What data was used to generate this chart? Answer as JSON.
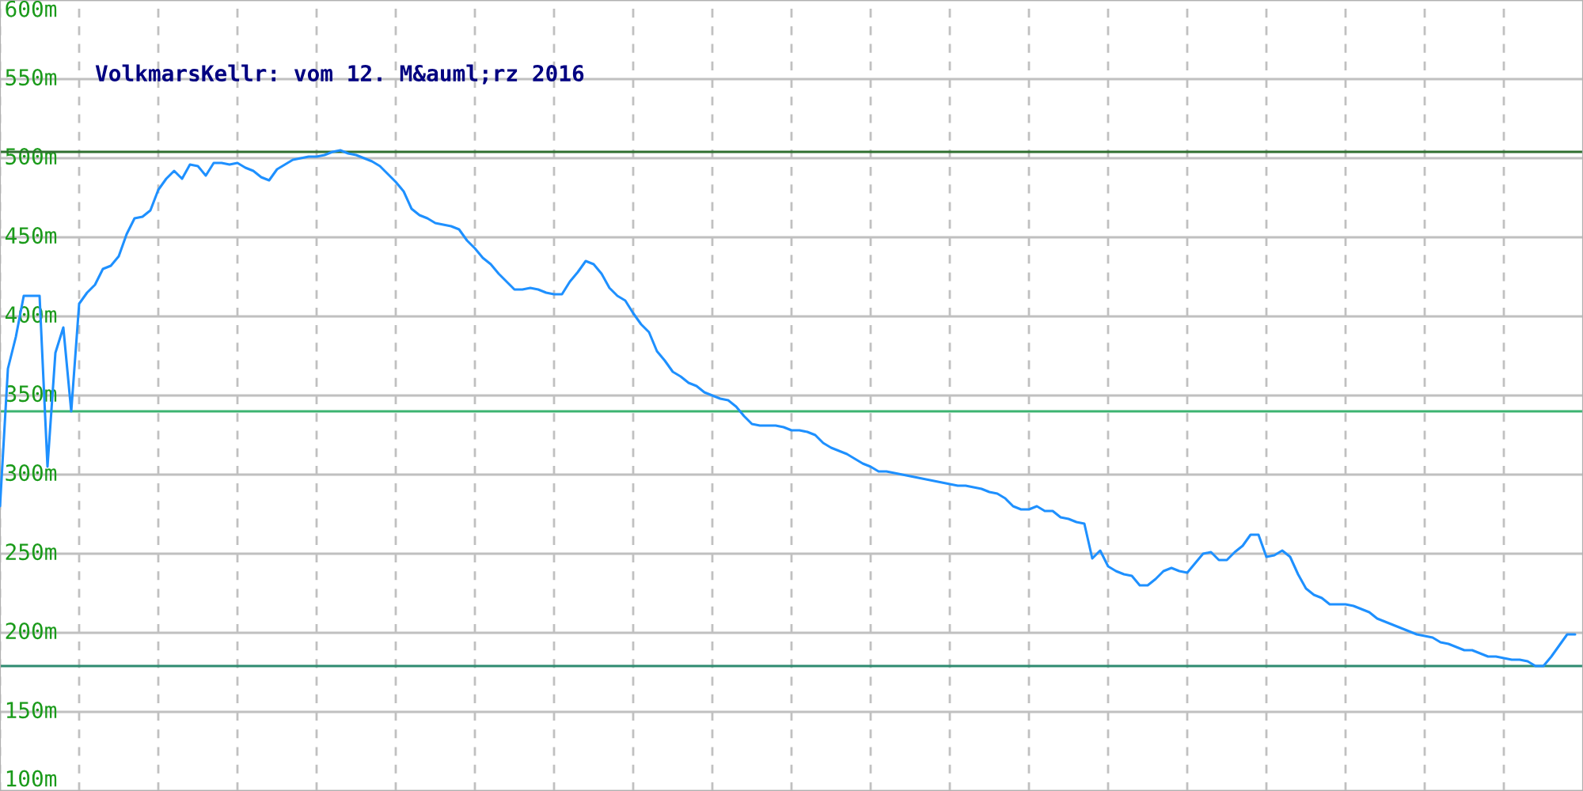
{
  "chart_data": {
    "type": "line",
    "title": "VolkmarsKellr: vom 12. M&auml;rz 2016",
    "categories": [
      null,
      null,
      null,
      null,
      null,
      null,
      null,
      null,
      null,
      null,
      null,
      null,
      null,
      null,
      null,
      null,
      null,
      null,
      null,
      null,
      null,
      null,
      null,
      null,
      null,
      null,
      null,
      null,
      null,
      null,
      null,
      null,
      null,
      null,
      null,
      null,
      null,
      null,
      null,
      null,
      null,
      null,
      null,
      null,
      null,
      null,
      null,
      null,
      null,
      null,
      null,
      null,
      null,
      null,
      null,
      null,
      null,
      null,
      null,
      null,
      null,
      null,
      null,
      null,
      null,
      null,
      null,
      null,
      null,
      null,
      null,
      null,
      null,
      null,
      null,
      null,
      null,
      null,
      null,
      null,
      null,
      null,
      null,
      null,
      null,
      null,
      null,
      null,
      null,
      null,
      null,
      null,
      null,
      null,
      null,
      null,
      null,
      null,
      null,
      null,
      null,
      null,
      null,
      null,
      null,
      null,
      null,
      null,
      null,
      null,
      null,
      null,
      null,
      null,
      null,
      null,
      null,
      null,
      null,
      null,
      null,
      null,
      null,
      null,
      null,
      null,
      null,
      null,
      null,
      null,
      null,
      null,
      null,
      null,
      null,
      null,
      null,
      null,
      null,
      null,
      null,
      null,
      null,
      null,
      null,
      null,
      null,
      null,
      null,
      null,
      null,
      null,
      null,
      null,
      null,
      null,
      null,
      null,
      null,
      null,
      null,
      null,
      null,
      null,
      null,
      null,
      null,
      null,
      null,
      null,
      null,
      null,
      null,
      null,
      null,
      null,
      null,
      null,
      null,
      null,
      null,
      null,
      null,
      null,
      null,
      null,
      null,
      null,
      null,
      null,
      null,
      null,
      null,
      null,
      null,
      null,
      null,
      null,
      null,
      null
    ],
    "series": [
      {
        "color": "#1e90ff",
        "values": [
          280,
          367,
          387,
          413,
          413,
          413,
          305,
          377,
          393,
          340,
          408,
          415,
          420,
          430,
          432,
          438,
          452,
          462,
          463,
          467,
          480,
          487,
          492,
          487,
          496,
          495,
          489,
          497,
          497,
          496,
          497,
          494,
          492,
          488,
          486,
          493,
          496,
          499,
          500,
          501,
          501,
          502,
          504,
          505,
          503,
          502,
          500,
          498,
          495,
          490,
          485,
          479,
          468,
          464,
          462,
          459,
          458,
          457,
          455,
          448,
          443,
          437,
          433,
          427,
          422,
          417,
          417,
          418,
          417,
          415,
          414,
          414,
          422,
          428,
          435,
          433,
          427,
          418,
          413,
          410,
          402,
          395,
          390,
          378,
          372,
          365,
          362,
          358,
          356,
          352,
          350,
          348,
          347,
          343,
          337,
          332,
          331,
          331,
          331,
          330,
          328,
          328,
          327,
          325,
          320,
          317,
          315,
          313,
          310,
          307,
          305,
          302,
          302,
          301,
          300,
          299,
          298,
          297,
          296,
          295,
          294,
          293,
          293,
          292,
          291,
          289,
          288,
          285,
          280,
          278,
          278,
          280,
          277,
          277,
          273,
          272,
          270,
          269,
          247,
          252,
          242,
          239,
          237,
          236,
          230,
          230,
          234,
          239,
          241,
          239,
          238,
          244,
          250,
          251,
          246,
          246,
          251,
          255,
          262,
          262,
          248,
          249,
          252,
          248,
          237,
          228,
          224,
          222,
          218,
          218,
          218,
          217,
          215,
          213,
          209,
          207,
          205,
          203,
          201,
          199,
          198,
          197,
          194,
          193,
          191,
          189,
          189,
          187,
          185,
          185,
          184,
          183,
          183,
          182,
          179,
          179,
          185,
          192,
          199,
          199
        ]
      }
    ],
    "ylim": [
      100,
      600
    ],
    "yticks": [
      {
        "value": 100,
        "label": "100m"
      },
      {
        "value": 150,
        "label": "150m"
      },
      {
        "value": 200,
        "label": "200m"
      },
      {
        "value": 250,
        "label": "250m"
      },
      {
        "value": 300,
        "label": "300m"
      },
      {
        "value": 350,
        "label": "350m"
      },
      {
        "value": 400,
        "label": "400m"
      },
      {
        "value": 450,
        "label": "450m"
      },
      {
        "value": 500,
        "label": "500m"
      },
      {
        "value": 550,
        "label": "550m"
      },
      {
        "value": 600,
        "label": "600m"
      }
    ],
    "tick_labels": "y",
    "grid": true,
    "ref_lines": [
      {
        "axis": "y",
        "value": 504,
        "color": "#2f6f2f"
      },
      {
        "axis": "y",
        "value": 340,
        "color": "#3cb371"
      },
      {
        "axis": "y",
        "value": 179,
        "color": "#2e8b70"
      }
    ]
  }
}
